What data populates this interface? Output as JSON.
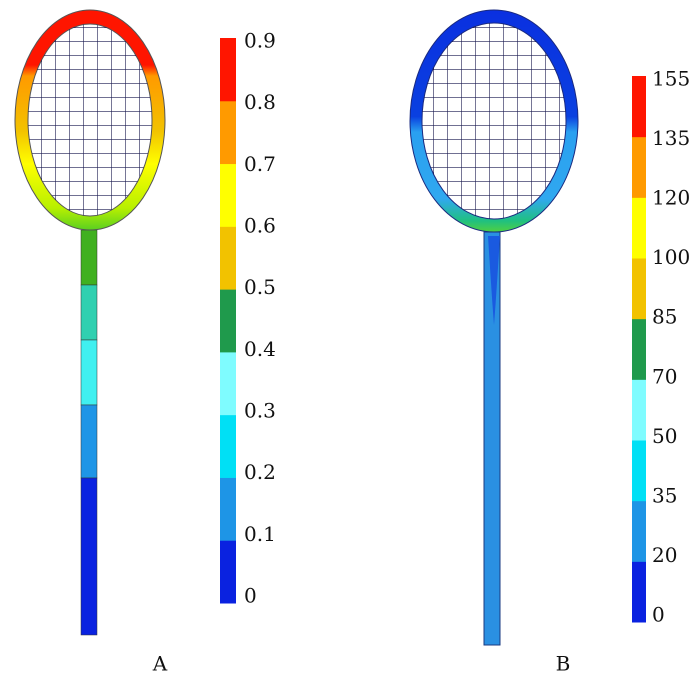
{
  "panels": [
    {
      "label": "A",
      "ticks": [
        "0",
        "0.1",
        "0.2",
        "0.3",
        "0.4",
        "0.5",
        "0.6",
        "0.7",
        "0.8",
        "0.9"
      ],
      "colors": [
        "#0a22e0",
        "#1e95e6",
        "#00e0f5",
        "#7ffcff",
        "#1f9a4c",
        "#f2c200",
        "#ffff00",
        "#ff9a00",
        "#ff1500"
      ]
    },
    {
      "label": "B",
      "ticks": [
        "0",
        "20",
        "35",
        "50",
        "70",
        "85",
        "100",
        "120",
        "135",
        "155"
      ],
      "colors": [
        "#0a22e0",
        "#1e95e6",
        "#00e0f5",
        "#7ffcff",
        "#1f9a4c",
        "#f2c200",
        "#ffff00",
        "#ff9a00",
        "#ff1500"
      ]
    }
  ]
}
